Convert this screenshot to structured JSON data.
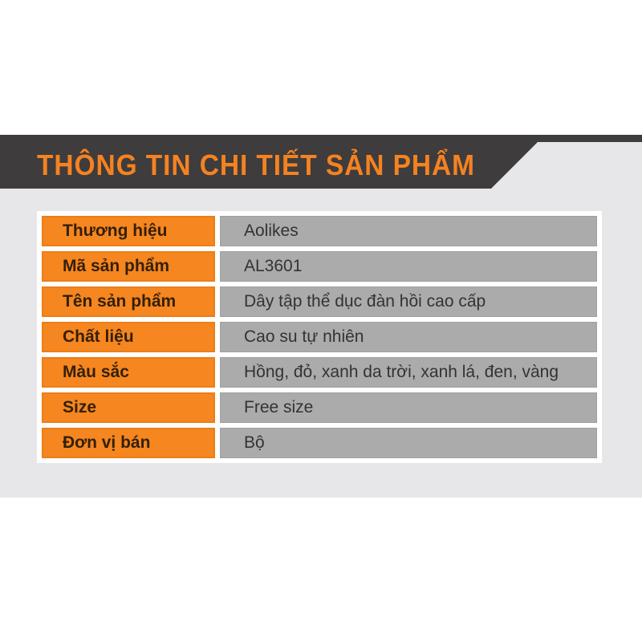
{
  "colors": {
    "page_bg": "#ffffff",
    "content_bg": "#e7e7e9",
    "banner_bg": "#3e3c3d",
    "banner_text": "#f58220",
    "accent": "#f6861f",
    "value_bg": "#ababab",
    "label_text": "#33200a",
    "value_text": "#333333"
  },
  "banner": {
    "title": "THÔNG TIN CHI TIẾT SẢN PHẨM"
  },
  "table": {
    "rows": [
      {
        "label": "Thương hiệu",
        "value": "Aolikes"
      },
      {
        "label": "Mã sản phẩm",
        "value": "AL3601"
      },
      {
        "label": "Tên sản phẩm",
        "value": "Dây tập thể dục đàn hồi cao cấp"
      },
      {
        "label": "Chất liệu",
        "value": "Cao su tự nhiên"
      },
      {
        "label": "Màu sắc",
        "value": "Hồng, đỏ, xanh da trời, xanh lá, đen, vàng"
      },
      {
        "label": "Size",
        "value": "Free size"
      },
      {
        "label": "Đơn vị bán",
        "value": "Bộ"
      }
    ]
  }
}
